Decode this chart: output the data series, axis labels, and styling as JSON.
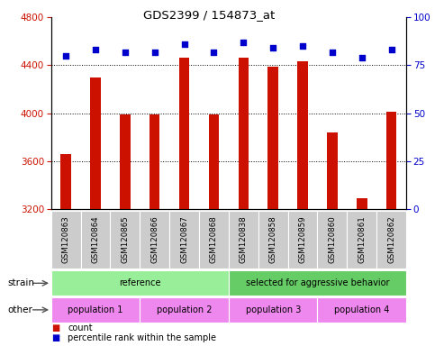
{
  "title": "GDS2399 / 154873_at",
  "samples": [
    "GSM120863",
    "GSM120864",
    "GSM120865",
    "GSM120866",
    "GSM120867",
    "GSM120868",
    "GSM120838",
    "GSM120858",
    "GSM120859",
    "GSM120860",
    "GSM120861",
    "GSM120862"
  ],
  "counts": [
    3660,
    4300,
    3990,
    3990,
    4460,
    3990,
    4460,
    4390,
    4430,
    3840,
    3290,
    4010
  ],
  "percentiles": [
    80,
    83,
    82,
    82,
    86,
    82,
    87,
    84,
    85,
    82,
    79,
    83
  ],
  "ylim_left": [
    3200,
    4800
  ],
  "ylim_right": [
    0,
    100
  ],
  "yticks_left": [
    3200,
    3600,
    4000,
    4400,
    4800
  ],
  "yticks_right": [
    0,
    25,
    50,
    75,
    100
  ],
  "bar_color": "#cc1100",
  "dot_color": "#0000cc",
  "grid_color": "#000000",
  "bg_color": "#ffffff",
  "tick_area_color": "#cccccc",
  "strain_ref_color": "#99ee99",
  "strain_agg_color": "#66cc66",
  "other_color": "#ee88ee",
  "strain_groups": [
    {
      "label": "reference",
      "start": 0,
      "end": 6
    },
    {
      "label": "selected for aggressive behavior",
      "start": 6,
      "end": 12
    }
  ],
  "other_groups": [
    {
      "label": "population 1",
      "start": 0,
      "end": 3
    },
    {
      "label": "population 2",
      "start": 3,
      "end": 6
    },
    {
      "label": "population 3",
      "start": 6,
      "end": 9
    },
    {
      "label": "population 4",
      "start": 9,
      "end": 12
    }
  ],
  "legend_count_label": "count",
  "legend_pct_label": "percentile rank within the sample",
  "strain_label": "strain",
  "other_label": "other",
  "left_label_color": "#cc1100",
  "right_label_color": "#0000cc"
}
